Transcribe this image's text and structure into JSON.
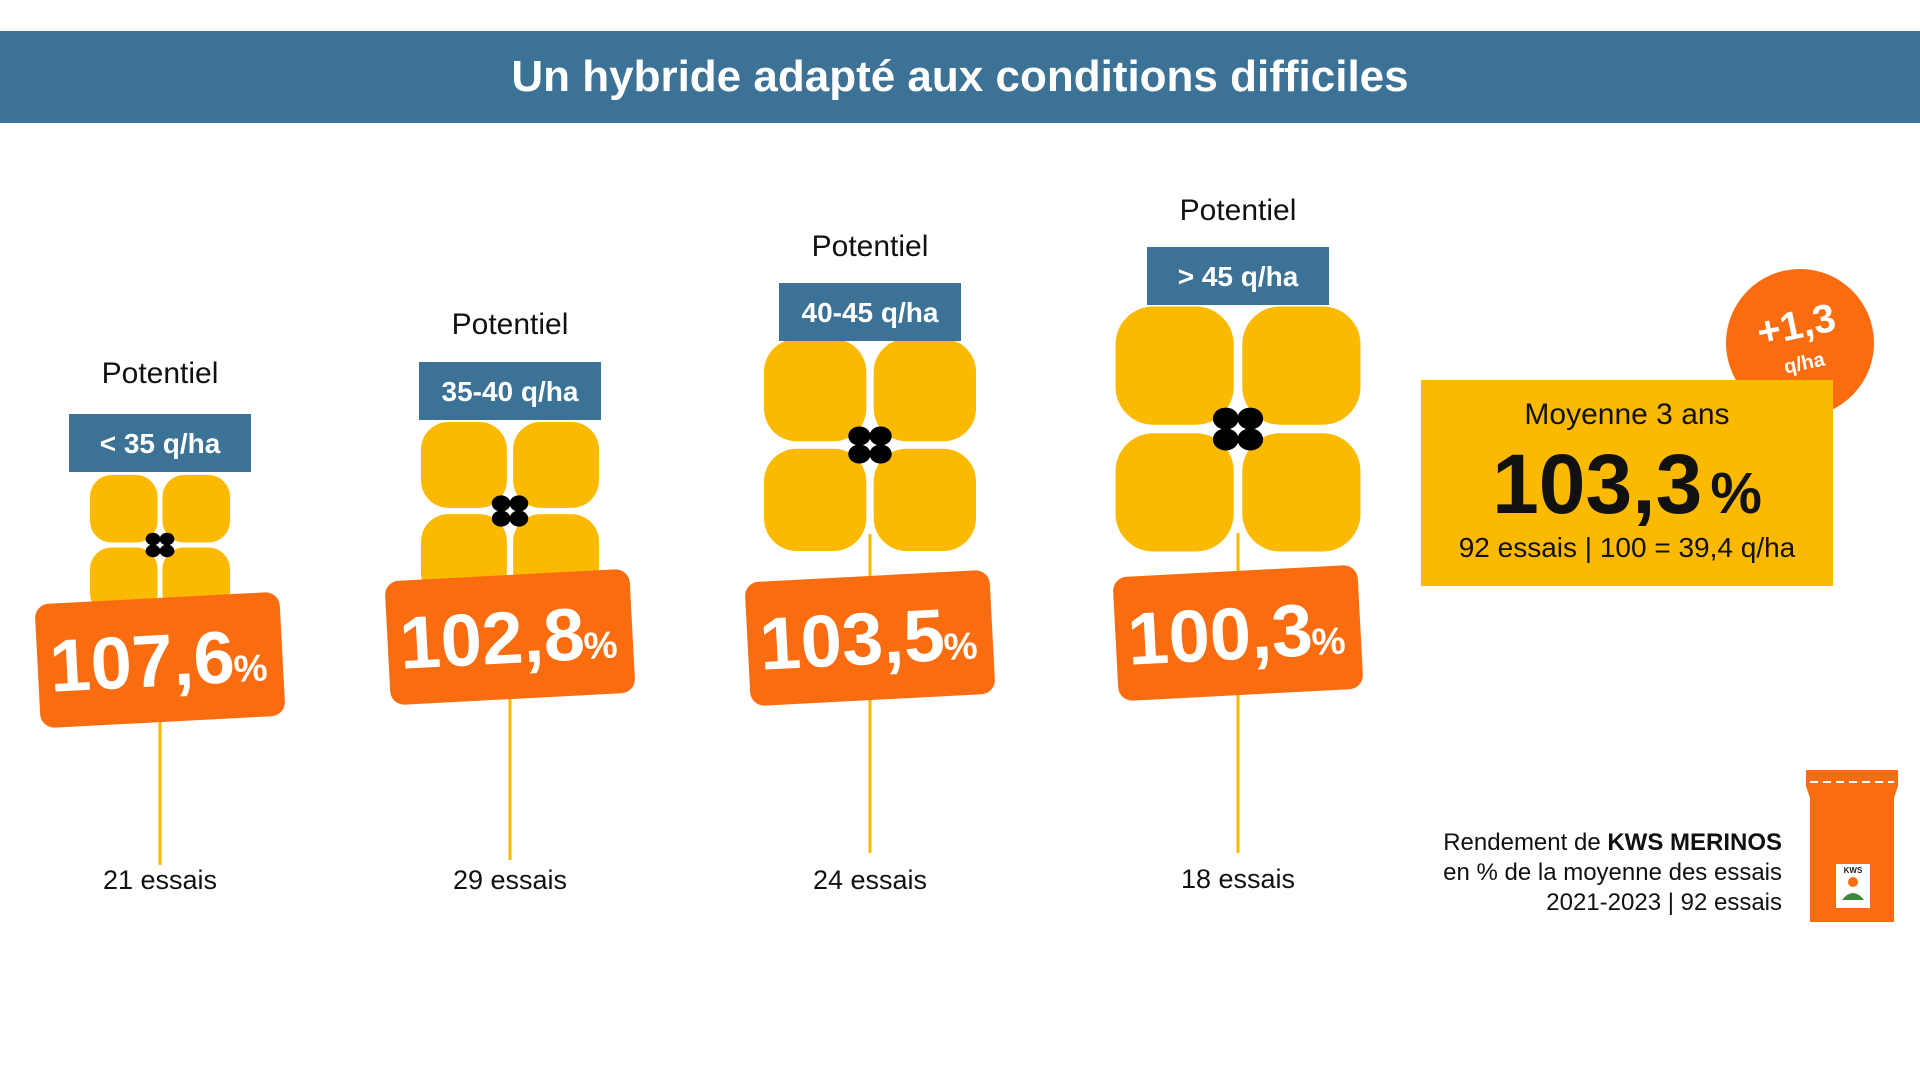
{
  "title": "Un hybride adapté aux conditions difficiles",
  "colors": {
    "banner": "#3c7296",
    "flower": "#fbb900",
    "flower_center": "#000000",
    "value_tag": "#fa6c10",
    "stem": "#fbb900",
    "range_tag": "#3c7296",
    "summary_box": "#fbb900",
    "badge": "#fa6c10"
  },
  "chart_data": {
    "type": "bar",
    "categories": [
      "< 35 q/ha",
      "35-40 q/ha",
      "40-45 q/ha",
      "> 45 q/ha"
    ],
    "category_heading": "Potentiel",
    "values": [
      107.6,
      102.8,
      103.5,
      100.3
    ],
    "value_labels": [
      "107,6",
      "102,8",
      "103,5",
      "100,3"
    ],
    "value_unit": "%",
    "trials": [
      "21 essais",
      "29 essais",
      "24 essais",
      "18 essais"
    ]
  },
  "summary": {
    "label": "Moyenne 3 ans",
    "value": "103,3",
    "unit": "%",
    "note": "92 essais | 100 = 39,4 q/ha"
  },
  "badge": {
    "value": "+1,3",
    "unit": "q/ha"
  },
  "caption": {
    "line1_prefix": "Rendement de ",
    "line1_brand": "KWS MERINOS",
    "line2": "en % de la moyenne des essais",
    "line3": "2021-2023 | 92 essais"
  },
  "seed_bag": {
    "logo_text": "KWS",
    "icon": "seed-bag-icon"
  }
}
